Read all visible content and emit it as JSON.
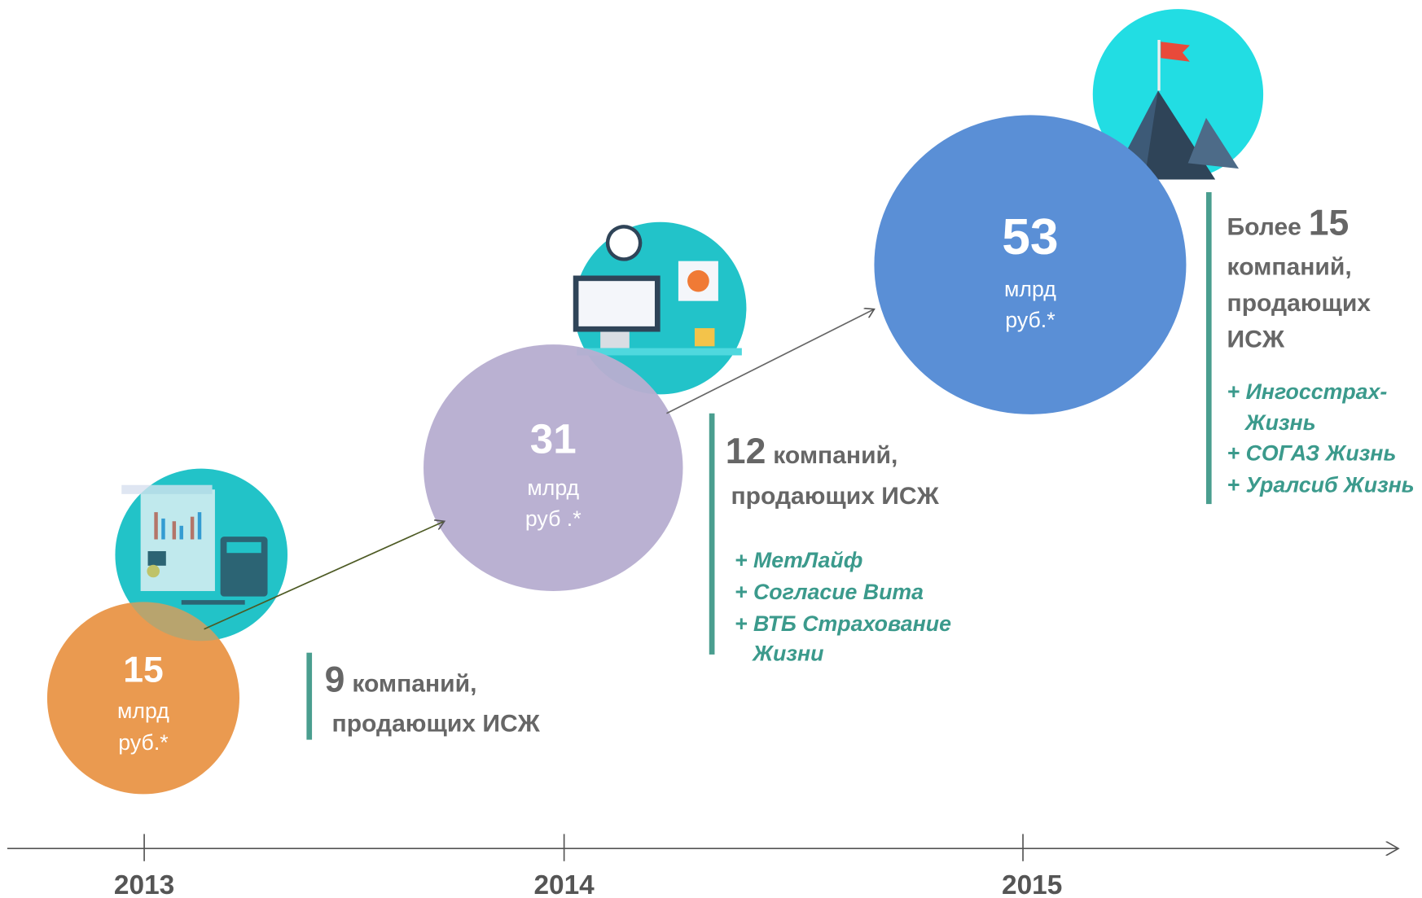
{
  "timeline": {
    "years": [
      "2013",
      "2014",
      "2015"
    ]
  },
  "stages": [
    {
      "volume": 15,
      "unit_lines": [
        "млрд",
        "руб.*"
      ],
      "prefix": null,
      "companies": 9,
      "companies_text": "компаний,",
      "rest_lines": [
        "продающих ИСЖ"
      ],
      "additions": []
    },
    {
      "volume": 31,
      "unit_lines": [
        "млрд",
        "руб .*"
      ],
      "prefix": null,
      "companies": 12,
      "companies_text": "компаний,",
      "rest_lines": [
        "продающих ИСЖ"
      ],
      "additions": [
        "+ МетЛайф",
        "+ Согласие Вита",
        "+ ВТБ Страхование",
        "Жизни"
      ]
    },
    {
      "volume": 53,
      "unit_lines": [
        "млрд",
        "руб.*"
      ],
      "prefix": "Более",
      "companies": 15,
      "companies_text": null,
      "rest_lines": [
        "компаний,",
        "продающих",
        "ИСЖ"
      ],
      "additions": [
        "+ Ингосстрах-",
        "Жизнь",
        "+ СОГАЗ Жизнь",
        "+ Уралсиб Жизнь"
      ]
    }
  ]
}
